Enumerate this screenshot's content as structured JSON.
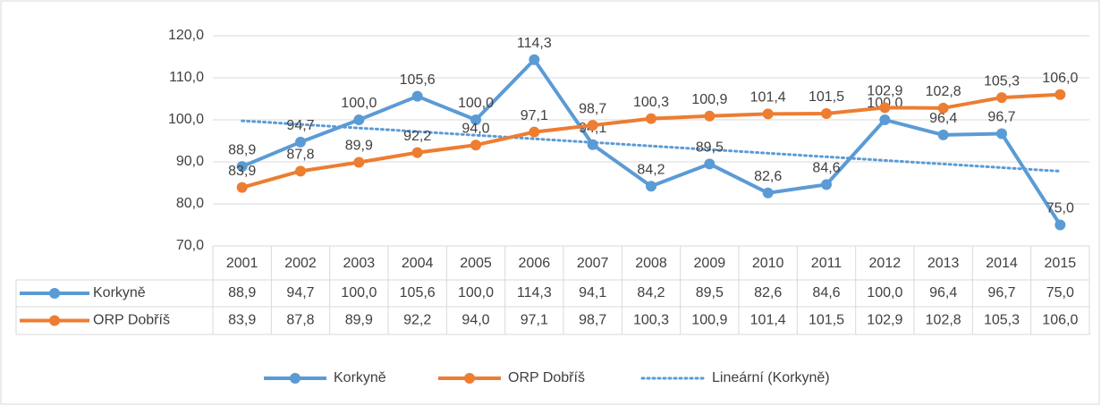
{
  "chart_data": {
    "type": "line",
    "categories": [
      "2001",
      "2002",
      "2003",
      "2004",
      "2005",
      "2006",
      "2007",
      "2008",
      "2009",
      "2010",
      "2011",
      "2012",
      "2013",
      "2014",
      "2015"
    ],
    "series": [
      {
        "name": "Korkyně",
        "color": "#5b9bd5",
        "values": [
          88.9,
          94.7,
          100.0,
          105.6,
          100.0,
          114.3,
          94.1,
          84.2,
          89.5,
          82.6,
          84.6,
          100.0,
          96.4,
          96.7,
          75.0
        ],
        "value_labels": [
          "88,9",
          "94,7",
          "100,0",
          "105,6",
          "100,0",
          "114,3",
          "94,1",
          "84,2",
          "89,5",
          "82,6",
          "84,6",
          "100,0",
          "96,4",
          "96,7",
          "75,0"
        ]
      },
      {
        "name": "ORP Dobříš",
        "color": "#ed7d31",
        "values": [
          83.9,
          87.8,
          89.9,
          92.2,
          94.0,
          97.1,
          98.7,
          100.3,
          100.9,
          101.4,
          101.5,
          102.9,
          102.8,
          105.3,
          106.0
        ],
        "value_labels": [
          "83,9",
          "87,8",
          "89,9",
          "92,2",
          "94,0",
          "97,1",
          "98,7",
          "100,3",
          "100,9",
          "101,4",
          "101,5",
          "102,9",
          "102,8",
          "105,3",
          "106,0"
        ]
      }
    ],
    "trendline": {
      "name": "Lineární (Korkyně)",
      "type": "linear",
      "series": 0,
      "color": "#5b9bd5"
    },
    "ylim": [
      70,
      120
    ],
    "yticks": [
      {
        "value": 70,
        "label": "70,0"
      },
      {
        "value": 80,
        "label": "80,0"
      },
      {
        "value": 90,
        "label": "90,0"
      },
      {
        "value": 100,
        "label": "100,0"
      },
      {
        "value": 110,
        "label": "110,0"
      },
      {
        "value": 120,
        "label": "120,0"
      }
    ],
    "grid": true,
    "data_table": true,
    "legend": "bottom"
  }
}
